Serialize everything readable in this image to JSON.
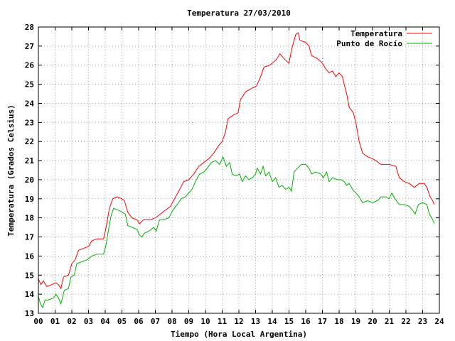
{
  "chart_data": {
    "type": "line",
    "title": "Temperatura 27/03/2010",
    "xlabel": "Tiempo (Hora Local Argentina)",
    "ylabel": "Temperatura (Grados Celsius)",
    "xlim": [
      0,
      24
    ],
    "ylim": [
      13,
      28
    ],
    "x_ticks": [
      "00",
      "01",
      "02",
      "03",
      "04",
      "05",
      "06",
      "07",
      "08",
      "09",
      "10",
      "11",
      "12",
      "13",
      "14",
      "15",
      "16",
      "17",
      "18",
      "19",
      "20",
      "21",
      "22",
      "23",
      "24"
    ],
    "y_ticks": [
      "13",
      "14",
      "15",
      "16",
      "17",
      "18",
      "19",
      "20",
      "21",
      "22",
      "23",
      "24",
      "25",
      "26",
      "27",
      "28"
    ],
    "grid": true,
    "legend_position": "top-right",
    "series": [
      {
        "name": "Temperatura",
        "color": "#ff0000",
        "points": [
          [
            0,
            14.8
          ],
          [
            0.15,
            14.5
          ],
          [
            0.3,
            14.7
          ],
          [
            0.5,
            14.4
          ],
          [
            0.8,
            14.5
          ],
          [
            1.05,
            14.6
          ],
          [
            1.2,
            14.5
          ],
          [
            1.35,
            14.3
          ],
          [
            1.5,
            14.9
          ],
          [
            1.8,
            15.0
          ],
          [
            2.0,
            15.6
          ],
          [
            2.2,
            15.8
          ],
          [
            2.4,
            16.3
          ],
          [
            2.7,
            16.4
          ],
          [
            3.0,
            16.5
          ],
          [
            3.2,
            16.8
          ],
          [
            3.5,
            16.9
          ],
          [
            3.9,
            16.9
          ],
          [
            4.05,
            17.5
          ],
          [
            4.25,
            18.5
          ],
          [
            4.45,
            19.0
          ],
          [
            4.7,
            19.1
          ],
          [
            5.0,
            19.0
          ],
          [
            5.15,
            18.9
          ],
          [
            5.35,
            18.3
          ],
          [
            5.6,
            18.0
          ],
          [
            5.9,
            17.9
          ],
          [
            6.05,
            17.7
          ],
          [
            6.3,
            17.9
          ],
          [
            6.7,
            17.9
          ],
          [
            7.0,
            18.0
          ],
          [
            7.3,
            18.2
          ],
          [
            7.6,
            18.4
          ],
          [
            7.9,
            18.6
          ],
          [
            8.15,
            19.0
          ],
          [
            8.4,
            19.4
          ],
          [
            8.7,
            19.9
          ],
          [
            9.0,
            20.0
          ],
          [
            9.3,
            20.3
          ],
          [
            9.6,
            20.7
          ],
          [
            9.9,
            20.9
          ],
          [
            10.2,
            21.1
          ],
          [
            10.5,
            21.4
          ],
          [
            10.8,
            21.8
          ],
          [
            11.0,
            22.0
          ],
          [
            11.2,
            22.5
          ],
          [
            11.35,
            23.2
          ],
          [
            11.7,
            23.4
          ],
          [
            11.95,
            23.5
          ],
          [
            12.1,
            24.2
          ],
          [
            12.4,
            24.6
          ],
          [
            12.8,
            24.8
          ],
          [
            13.05,
            24.9
          ],
          [
            13.3,
            25.4
          ],
          [
            13.5,
            25.9
          ],
          [
            13.85,
            26.0
          ],
          [
            14.0,
            26.1
          ],
          [
            14.25,
            26.3
          ],
          [
            14.45,
            26.6
          ],
          [
            14.75,
            26.3
          ],
          [
            15.0,
            26.1
          ],
          [
            15.15,
            26.8
          ],
          [
            15.4,
            27.6
          ],
          [
            15.55,
            27.7
          ],
          [
            15.65,
            27.3
          ],
          [
            16.0,
            27.2
          ],
          [
            16.2,
            27.0
          ],
          [
            16.35,
            26.5
          ],
          [
            16.6,
            26.4
          ],
          [
            16.9,
            26.2
          ],
          [
            17.0,
            26.1
          ],
          [
            17.2,
            25.8
          ],
          [
            17.4,
            25.6
          ],
          [
            17.6,
            25.7
          ],
          [
            17.8,
            25.4
          ],
          [
            18.0,
            25.6
          ],
          [
            18.2,
            25.4
          ],
          [
            18.3,
            25.0
          ],
          [
            18.45,
            24.5
          ],
          [
            18.6,
            23.8
          ],
          [
            18.85,
            23.5
          ],
          [
            19.0,
            23.0
          ],
          [
            19.2,
            22.0
          ],
          [
            19.4,
            21.4
          ],
          [
            19.7,
            21.2
          ],
          [
            20.0,
            21.1
          ],
          [
            20.2,
            21.0
          ],
          [
            20.5,
            20.8
          ],
          [
            21.0,
            20.8
          ],
          [
            21.4,
            20.7
          ],
          [
            21.6,
            20.1
          ],
          [
            21.9,
            19.9
          ],
          [
            22.2,
            19.8
          ],
          [
            22.5,
            19.6
          ],
          [
            22.8,
            19.8
          ],
          [
            23.1,
            19.8
          ],
          [
            23.25,
            19.6
          ],
          [
            23.45,
            19.1
          ],
          [
            23.6,
            18.9
          ],
          [
            23.7,
            18.7
          ]
        ]
      },
      {
        "name": "Punto de Rocío",
        "color": "#00b000",
        "points": [
          [
            0,
            13.9
          ],
          [
            0.12,
            13.5
          ],
          [
            0.25,
            13.3
          ],
          [
            0.4,
            13.7
          ],
          [
            0.6,
            13.7
          ],
          [
            0.9,
            13.8
          ],
          [
            1.05,
            14.0
          ],
          [
            1.2,
            13.8
          ],
          [
            1.35,
            13.5
          ],
          [
            1.55,
            14.2
          ],
          [
            1.8,
            14.3
          ],
          [
            1.95,
            14.9
          ],
          [
            2.15,
            15.0
          ],
          [
            2.3,
            15.6
          ],
          [
            2.6,
            15.7
          ],
          [
            2.9,
            15.8
          ],
          [
            3.2,
            16.0
          ],
          [
            3.5,
            16.1
          ],
          [
            3.9,
            16.1
          ],
          [
            4.05,
            16.6
          ],
          [
            4.2,
            17.4
          ],
          [
            4.35,
            18.1
          ],
          [
            4.5,
            18.5
          ],
          [
            4.8,
            18.4
          ],
          [
            5.0,
            18.3
          ],
          [
            5.2,
            18.2
          ],
          [
            5.35,
            17.6
          ],
          [
            5.6,
            17.5
          ],
          [
            5.9,
            17.4
          ],
          [
            6.05,
            17.1
          ],
          [
            6.2,
            17.0
          ],
          [
            6.35,
            17.2
          ],
          [
            6.6,
            17.3
          ],
          [
            6.9,
            17.5
          ],
          [
            7.05,
            17.3
          ],
          [
            7.25,
            17.9
          ],
          [
            7.5,
            17.9
          ],
          [
            7.8,
            18.0
          ],
          [
            8.05,
            18.4
          ],
          [
            8.3,
            18.7
          ],
          [
            8.55,
            19.0
          ],
          [
            8.8,
            19.1
          ],
          [
            9.0,
            19.3
          ],
          [
            9.2,
            19.5
          ],
          [
            9.4,
            19.9
          ],
          [
            9.65,
            20.3
          ],
          [
            9.9,
            20.4
          ],
          [
            10.1,
            20.6
          ],
          [
            10.35,
            20.9
          ],
          [
            10.6,
            21.0
          ],
          [
            10.85,
            20.8
          ],
          [
            11.05,
            21.2
          ],
          [
            11.25,
            20.7
          ],
          [
            11.45,
            20.9
          ],
          [
            11.6,
            20.3
          ],
          [
            11.8,
            20.2
          ],
          [
            12.05,
            20.3
          ],
          [
            12.2,
            19.9
          ],
          [
            12.4,
            20.2
          ],
          [
            12.6,
            20.0
          ],
          [
            12.8,
            20.1
          ],
          [
            13.0,
            20.3
          ],
          [
            13.1,
            20.6
          ],
          [
            13.3,
            20.3
          ],
          [
            13.45,
            20.7
          ],
          [
            13.6,
            20.2
          ],
          [
            13.8,
            20.4
          ],
          [
            14.0,
            19.9
          ],
          [
            14.2,
            20.1
          ],
          [
            14.4,
            19.6
          ],
          [
            14.6,
            19.7
          ],
          [
            14.8,
            19.5
          ],
          [
            15.0,
            19.6
          ],
          [
            15.15,
            19.4
          ],
          [
            15.3,
            20.4
          ],
          [
            15.5,
            20.6
          ],
          [
            15.75,
            20.8
          ],
          [
            16.0,
            20.8
          ],
          [
            16.2,
            20.6
          ],
          [
            16.35,
            20.3
          ],
          [
            16.6,
            20.4
          ],
          [
            16.9,
            20.3
          ],
          [
            17.05,
            20.1
          ],
          [
            17.25,
            20.4
          ],
          [
            17.4,
            19.9
          ],
          [
            17.6,
            20.1
          ],
          [
            17.9,
            20.0
          ],
          [
            18.1,
            20.0
          ],
          [
            18.3,
            19.9
          ],
          [
            18.45,
            19.7
          ],
          [
            18.6,
            19.8
          ],
          [
            18.8,
            19.5
          ],
          [
            19.0,
            19.3
          ],
          [
            19.2,
            19.1
          ],
          [
            19.4,
            18.8
          ],
          [
            19.7,
            18.9
          ],
          [
            20.0,
            18.8
          ],
          [
            20.3,
            18.9
          ],
          [
            20.5,
            19.1
          ],
          [
            20.8,
            19.1
          ],
          [
            21.0,
            19.0
          ],
          [
            21.15,
            19.3
          ],
          [
            21.35,
            19.0
          ],
          [
            21.6,
            18.7
          ],
          [
            21.9,
            18.7
          ],
          [
            22.2,
            18.6
          ],
          [
            22.4,
            18.4
          ],
          [
            22.55,
            18.2
          ],
          [
            22.75,
            18.7
          ],
          [
            23.0,
            18.8
          ],
          [
            23.25,
            18.7
          ],
          [
            23.4,
            18.2
          ],
          [
            23.55,
            18.0
          ],
          [
            23.7,
            17.7
          ]
        ]
      }
    ]
  }
}
